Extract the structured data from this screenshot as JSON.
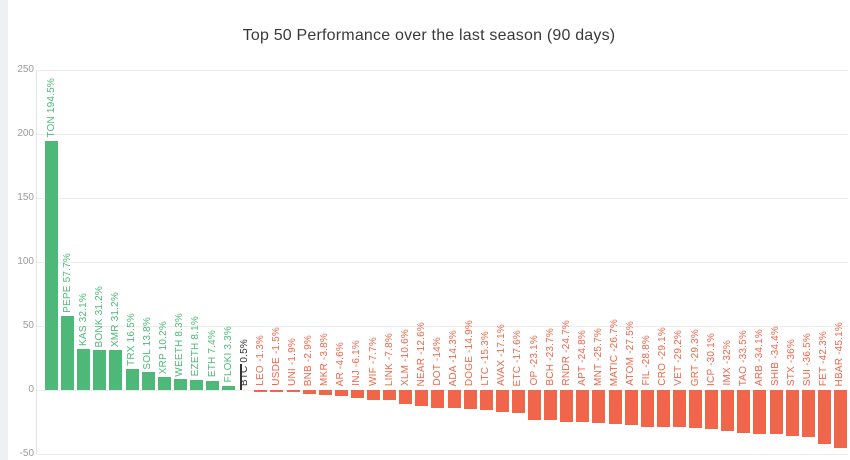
{
  "chart_data": {
    "type": "bar",
    "title": "Top 50 Performance over the last season (90 days)",
    "xlabel": "",
    "ylabel": "",
    "unit": "%",
    "ylim": [
      -50,
      250
    ],
    "yticks": [
      250,
      200,
      150,
      100,
      50,
      0,
      -50
    ],
    "grid": true,
    "legend": "none",
    "benchmark_symbol": "BTC",
    "colors": {
      "positive": "#4db878",
      "negative": "#ef664a",
      "benchmark": "#333333",
      "axis_tick": "#9b9b9b",
      "gridline": "#ededed",
      "title": "#393939",
      "card_background": "#ffffff",
      "page_background": "#eef0f3"
    },
    "series": [
      {
        "symbol": "TON",
        "value": 194.5,
        "label": "TON 194.5%"
      },
      {
        "symbol": "PEPE",
        "value": 57.7,
        "label": "PEPE 57.7%"
      },
      {
        "symbol": "KAS",
        "value": 32.1,
        "label": "KAS 32.1%"
      },
      {
        "symbol": "BONK",
        "value": 31.2,
        "label": "BONK 31.2%"
      },
      {
        "symbol": "XMR",
        "value": 31.2,
        "label": "XMR 31.2%"
      },
      {
        "symbol": "TRX",
        "value": 16.5,
        "label": "TRX 16.5%"
      },
      {
        "symbol": "SOL",
        "value": 13.8,
        "label": "SOL 13.8%"
      },
      {
        "symbol": "XRP",
        "value": 10.2,
        "label": "XRP 10.2%"
      },
      {
        "symbol": "WEETH",
        "value": 8.3,
        "label": "WEETH 8.3%"
      },
      {
        "symbol": "EZETH",
        "value": 8.1,
        "label": "EZETH 8.1%"
      },
      {
        "symbol": "ETH",
        "value": 7.4,
        "label": "ETH 7.4%"
      },
      {
        "symbol": "FLOKI",
        "value": 3.3,
        "label": "FLOKI 3.3%"
      },
      {
        "symbol": "BTC",
        "value": 0.5,
        "label": "BTC 0.5%"
      },
      {
        "symbol": "LEO",
        "value": -1.3,
        "label": "LEO -1.3%"
      },
      {
        "symbol": "USDE",
        "value": -1.5,
        "label": "USDE -1.5%"
      },
      {
        "symbol": "UNI",
        "value": -1.9,
        "label": "UNI -1.9%"
      },
      {
        "symbol": "BNB",
        "value": -2.9,
        "label": "BNB -2.9%"
      },
      {
        "symbol": "MKR",
        "value": -3.8,
        "label": "MKR -3.8%"
      },
      {
        "symbol": "AR",
        "value": -4.6,
        "label": "AR -4.6%"
      },
      {
        "symbol": "INJ",
        "value": -6.1,
        "label": "INJ -6.1%"
      },
      {
        "symbol": "WIF",
        "value": -7.7,
        "label": "WIF -7.7%"
      },
      {
        "symbol": "LINK",
        "value": -7.8,
        "label": "LINK -7.8%"
      },
      {
        "symbol": "XLM",
        "value": -10.6,
        "label": "XLM -10.6%"
      },
      {
        "symbol": "NEAR",
        "value": -12.6,
        "label": "NEAR -12.6%"
      },
      {
        "symbol": "DOT",
        "value": -14,
        "label": "DOT -14%"
      },
      {
        "symbol": "ADA",
        "value": -14.3,
        "label": "ADA -14.3%"
      },
      {
        "symbol": "DOGE",
        "value": -14.9,
        "label": "DOGE -14.9%"
      },
      {
        "symbol": "LTC",
        "value": -15.3,
        "label": "LTC -15.3%"
      },
      {
        "symbol": "AVAX",
        "value": -17.1,
        "label": "AVAX -17.1%"
      },
      {
        "symbol": "ETC",
        "value": -17.6,
        "label": "ETC -17.6%"
      },
      {
        "symbol": "OP",
        "value": -23.1,
        "label": "OP -23.1%"
      },
      {
        "symbol": "BCH",
        "value": -23.7,
        "label": "BCH -23.7%"
      },
      {
        "symbol": "RNDR",
        "value": -24.7,
        "label": "RNDR -24.7%"
      },
      {
        "symbol": "APT",
        "value": -24.8,
        "label": "APT -24.8%"
      },
      {
        "symbol": "MNT",
        "value": -25.7,
        "label": "MNT -25.7%"
      },
      {
        "symbol": "MATIC",
        "value": -26.7,
        "label": "MATIC -26.7%"
      },
      {
        "symbol": "ATOM",
        "value": -27.5,
        "label": "ATOM -27.5%"
      },
      {
        "symbol": "FIL",
        "value": -28.8,
        "label": "FIL -28.8%"
      },
      {
        "symbol": "CRO",
        "value": -29.1,
        "label": "CRO -29.1%"
      },
      {
        "symbol": "VET",
        "value": -29.2,
        "label": "VET -29.2%"
      },
      {
        "symbol": "GRT",
        "value": -29.3,
        "label": "GRT -29.3%"
      },
      {
        "symbol": "ICP",
        "value": -30.1,
        "label": "ICP -30.1%"
      },
      {
        "symbol": "IMX",
        "value": -32,
        "label": "IMX -32%"
      },
      {
        "symbol": "TAO",
        "value": -33.5,
        "label": "TAO -33.5%"
      },
      {
        "symbol": "ARB",
        "value": -34.1,
        "label": "ARB -34.1%"
      },
      {
        "symbol": "SHIB",
        "value": -34.4,
        "label": "SHIB -34.4%"
      },
      {
        "symbol": "STX",
        "value": -36,
        "label": "STX -36%"
      },
      {
        "symbol": "SUI",
        "value": -36.5,
        "label": "SUI -36.5%"
      },
      {
        "symbol": "FET",
        "value": -42.3,
        "label": "FET -42.3%"
      },
      {
        "symbol": "HBAR",
        "value": -45.1,
        "label": "HBAR -45.1%"
      }
    ]
  }
}
